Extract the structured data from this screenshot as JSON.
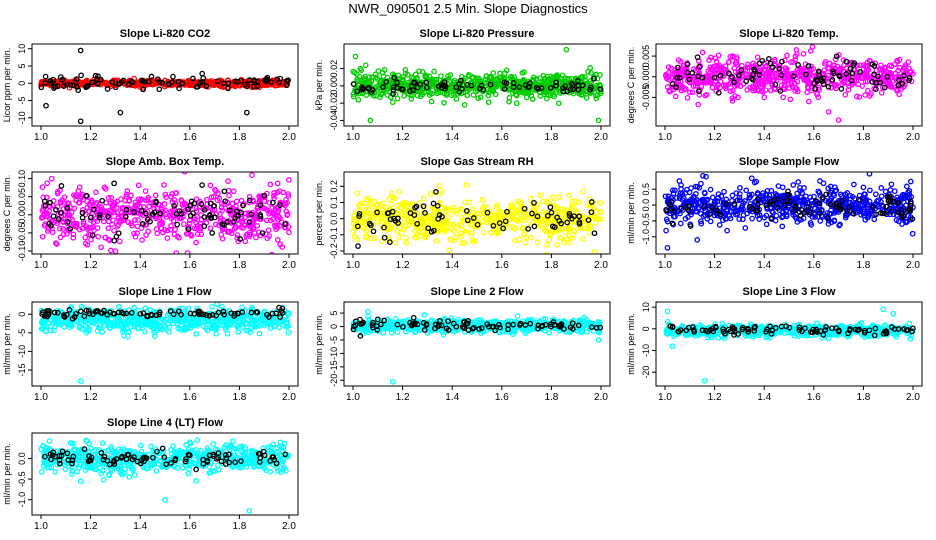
{
  "page": {
    "title": "NWR_090501  2.5 Min. Slope Diagnostics"
  },
  "chart_data": [
    {
      "type": "scatter",
      "title": "Slope Li-820 CO2",
      "xlabel": "",
      "ylabel": "Licor ppm per min.",
      "xlim": [
        1.0,
        2.0
      ],
      "ylim": [
        -11.5,
        10.5
      ],
      "xticks": [
        1.0,
        1.2,
        1.4,
        1.6,
        1.8,
        2.0
      ],
      "xtick_labels": [
        "1.0",
        "1.2",
        "1.4",
        "1.6",
        "1.8",
        "2.0"
      ],
      "yticks": [
        -10,
        -5,
        0,
        5,
        10
      ],
      "ytick_labels": [
        "-10",
        "-5",
        "0",
        "5",
        "10"
      ],
      "color": "#ff0000",
      "series": [
        {
          "name": "all",
          "color": "#ff0000",
          "n": 600,
          "center": 0.0,
          "spread": 0.45,
          "outliers": []
        },
        {
          "name": "selected",
          "color": "#000000",
          "n": 90,
          "center": 0.3,
          "spread": 0.9,
          "outliers": [
            [
              1.02,
              -6.5
            ],
            [
              1.16,
              9.5
            ],
            [
              1.16,
              -11.0
            ],
            [
              1.15,
              -2.0
            ],
            [
              1.32,
              -8.5
            ],
            [
              1.83,
              -8.5
            ],
            [
              1.65,
              2.8
            ],
            [
              1.22,
              2.2
            ],
            [
              1.08,
              1.8
            ]
          ]
        }
      ]
    },
    {
      "type": "scatter",
      "title": "Slope Li-820 Pressure",
      "xlabel": "",
      "ylabel": "kPa per min.",
      "xlim": [
        1.0,
        2.0
      ],
      "ylim": [
        -0.043,
        0.045
      ],
      "xticks": [
        1.0,
        1.2,
        1.4,
        1.6,
        1.8,
        2.0
      ],
      "xtick_labels": [
        "1.0",
        "1.2",
        "1.4",
        "1.6",
        "1.8",
        "2.0"
      ],
      "yticks": [
        -0.04,
        -0.02,
        0.0,
        0.02
      ],
      "ytick_labels": [
        "-0.04",
        "-0.02",
        "0.00",
        "0.02"
      ],
      "color": "#00cc00",
      "series": [
        {
          "name": "all",
          "color": "#00cc00",
          "n": 700,
          "center": 0.0,
          "spread": 0.007,
          "outliers": [
            [
              1.01,
              0.034
            ],
            [
              1.03,
              0.02
            ],
            [
              1.07,
              -0.04
            ],
            [
              1.86,
              0.042
            ],
            [
              1.99,
              -0.04
            ],
            [
              1.45,
              -0.022
            ],
            [
              1.62,
              0.018
            ]
          ]
        },
        {
          "name": "selected",
          "color": "#000000",
          "n": 80,
          "center": 0.0,
          "spread": 0.004,
          "outliers": []
        }
      ]
    },
    {
      "type": "scatter",
      "title": "Slope Li-820 Temp.",
      "xlabel": "",
      "ylabel": "degrees C per min.",
      "xlim": [
        1.0,
        2.0
      ],
      "ylim": [
        -0.0112,
        0.0072
      ],
      "xticks": [
        1.0,
        1.2,
        1.4,
        1.6,
        1.8,
        2.0
      ],
      "xtick_labels": [
        "1.0",
        "1.2",
        "1.4",
        "1.6",
        "1.8",
        "2.0"
      ],
      "yticks": [
        -0.005,
        0.0,
        0.005
      ],
      "ytick_labels": [
        "-0.005",
        "0.000",
        "0.005"
      ],
      "color": "#ff00ff",
      "series": [
        {
          "name": "all",
          "color": "#ff00ff",
          "n": 650,
          "center": 0.0,
          "spread": 0.0022,
          "outliers": [
            [
              1.66,
              -0.0085
            ],
            [
              1.7,
              -0.0105
            ],
            [
              1.58,
              -0.006
            ],
            [
              1.4,
              -0.005
            ]
          ]
        },
        {
          "name": "selected",
          "color": "#000000",
          "n": 85,
          "center": 0.0,
          "spread": 0.0018,
          "outliers": []
        }
      ]
    },
    {
      "type": "scatter",
      "title": "Slope Amb. Box Temp.",
      "xlabel": "",
      "ylabel": "degrees C per min.",
      "xlim": [
        1.0,
        2.0
      ],
      "ylim": [
        -0.1,
        0.11
      ],
      "xticks": [
        1.0,
        1.2,
        1.4,
        1.6,
        1.8,
        2.0
      ],
      "xtick_labels": [
        "1.0",
        "1.2",
        "1.4",
        "1.6",
        "1.8",
        "2.0"
      ],
      "yticks": [
        -0.1,
        -0.05,
        0.0,
        0.05,
        0.1
      ],
      "ytick_labels": [
        "-0.10",
        "-0.05",
        "0.00",
        "0.05",
        "0.10"
      ],
      "color": "#ff00ff",
      "series": [
        {
          "name": "all",
          "color": "#ff00ff",
          "n": 600,
          "center": 0.0,
          "spread": 0.038,
          "outliers": []
        },
        {
          "name": "selected",
          "color": "#000000",
          "n": 90,
          "center": 0.0,
          "spread": 0.03,
          "outliers": []
        }
      ]
    },
    {
      "type": "scatter",
      "title": "Slope Gas Stream RH",
      "xlabel": "",
      "ylabel": "percent per min.",
      "xlim": [
        1.0,
        2.0
      ],
      "ylim": [
        -0.2,
        0.27
      ],
      "xticks": [
        1.0,
        1.2,
        1.4,
        1.6,
        1.8,
        2.0
      ],
      "xtick_labels": [
        "1.0",
        "1.2",
        "1.4",
        "1.6",
        "1.8",
        "2.0"
      ],
      "yticks": [
        -0.2,
        -0.1,
        0.0,
        0.1,
        0.2
      ],
      "ytick_labels": [
        "-0.2",
        "-0.1",
        "0.0",
        "0.1",
        "0.2"
      ],
      "color": "#ffff00",
      "series": [
        {
          "name": "all",
          "color": "#ffff00",
          "n": 600,
          "center": 0.0,
          "spread": 0.07,
          "outliers": []
        },
        {
          "name": "selected",
          "color": "#000000",
          "n": 70,
          "center": 0.0,
          "spread": 0.06,
          "outliers": [
            [
              1.02,
              -0.17
            ]
          ]
        }
      ]
    },
    {
      "type": "scatter",
      "title": "Slope Sample Flow",
      "xlabel": "",
      "ylabel": "ml/min per min.",
      "xlim": [
        1.0,
        2.0
      ],
      "ylim": [
        -1.45,
        0.95
      ],
      "xticks": [
        1.0,
        1.2,
        1.4,
        1.6,
        1.8,
        2.0
      ],
      "xtick_labels": [
        "1.0",
        "1.2",
        "1.4",
        "1.6",
        "1.8",
        "2.0"
      ],
      "yticks": [
        -1.0,
        -0.5,
        0.0,
        0.5
      ],
      "ytick_labels": [
        "-1.0",
        "-0.5",
        "0.0",
        "0.5"
      ],
      "color": "#0000ff",
      "series": [
        {
          "name": "all",
          "color": "#0000ff",
          "n": 650,
          "center": 0.0,
          "spread": 0.3,
          "outliers": [
            [
              1.01,
              -1.35
            ],
            [
              1.35,
              0.85
            ],
            [
              1.13,
              -1.1
            ]
          ]
        },
        {
          "name": "selected",
          "color": "#000000",
          "n": 90,
          "center": 0.0,
          "spread": 0.22,
          "outliers": []
        }
      ]
    },
    {
      "type": "scatter",
      "title": "Slope Line 1 Flow",
      "xlabel": "",
      "ylabel": "ml/min per min.",
      "xlim": [
        1.0,
        2.0
      ],
      "ylim": [
        -18.5,
        2.5
      ],
      "xticks": [
        1.0,
        1.2,
        1.4,
        1.6,
        1.8,
        2.0
      ],
      "xtick_labels": [
        "1.0",
        "1.2",
        "1.4",
        "1.6",
        "1.8",
        "2.0"
      ],
      "yticks": [
        -15,
        -10,
        -5,
        0
      ],
      "ytick_labels": [
        "-15",
        "-10",
        "-5",
        "0"
      ],
      "color": "#00ffff",
      "series": [
        {
          "name": "all",
          "color": "#00ffff",
          "n": 600,
          "center": -1.5,
          "spread": 1.5,
          "outliers": [
            [
              1.16,
              -18.0
            ],
            [
              1.12,
              1.5
            ],
            [
              1.35,
              -6.0
            ]
          ]
        },
        {
          "name": "selected",
          "color": "#000000",
          "n": 90,
          "center": 0.2,
          "spread": 0.5,
          "outliers": []
        }
      ]
    },
    {
      "type": "scatter",
      "title": "Slope Line 2 Flow",
      "xlabel": "",
      "ylabel": "ml/min per min.",
      "xlim": [
        1.0,
        2.0
      ],
      "ylim": [
        -21,
        8
      ],
      "xticks": [
        1.0,
        1.2,
        1.4,
        1.6,
        1.8,
        2.0
      ],
      "xtick_labels": [
        "1.0",
        "1.2",
        "1.4",
        "1.6",
        "1.8",
        "2.0"
      ],
      "yticks": [
        -20,
        -15,
        -10,
        -5,
        0,
        5
      ],
      "ytick_labels": [
        "-20",
        "-15",
        "-10",
        "-5",
        "0",
        "5"
      ],
      "color": "#00ffff",
      "series": [
        {
          "name": "all",
          "color": "#00ffff",
          "n": 600,
          "center": 0.3,
          "spread": 1.2,
          "outliers": [
            [
              1.16,
              -20.5
            ],
            [
              1.99,
              -5.0
            ],
            [
              1.06,
              5.5
            ]
          ]
        },
        {
          "name": "selected",
          "color": "#000000",
          "n": 90,
          "center": 0.5,
          "spread": 1.0,
          "outliers": [
            [
              1.03,
              -3.5
            ]
          ]
        }
      ]
    },
    {
      "type": "scatter",
      "title": "Slope Line 3 Flow",
      "xlabel": "",
      "ylabel": "ml/min per min.",
      "xlim": [
        1.0,
        2.0
      ],
      "ylim": [
        -25,
        11
      ],
      "xticks": [
        1.0,
        1.2,
        1.4,
        1.6,
        1.8,
        2.0
      ],
      "xtick_labels": [
        "1.0",
        "1.2",
        "1.4",
        "1.6",
        "1.8",
        "2.0"
      ],
      "yticks": [
        -20,
        -10,
        0,
        10
      ],
      "ytick_labels": [
        "-20",
        "-10",
        "0",
        "10"
      ],
      "color": "#00ffff",
      "series": [
        {
          "name": "all",
          "color": "#00ffff",
          "n": 600,
          "center": -0.8,
          "spread": 1.3,
          "outliers": [
            [
              1.16,
              -24.0
            ],
            [
              1.01,
              8.0
            ],
            [
              1.03,
              -8.0
            ],
            [
              1.88,
              9.0
            ],
            [
              1.92,
              7.0
            ],
            [
              1.99,
              -4.5
            ]
          ]
        },
        {
          "name": "selected",
          "color": "#000000",
          "n": 90,
          "center": -0.5,
          "spread": 0.9,
          "outliers": []
        }
      ]
    },
    {
      "type": "scatter",
      "title": "Slope Line 4 (LT) Flow",
      "xlabel": "",
      "ylabel": "ml/min per min.",
      "xlim": [
        1.0,
        2.0
      ],
      "ylim": [
        -1.3,
        0.55
      ],
      "xticks": [
        1.0,
        1.2,
        1.4,
        1.6,
        1.8,
        2.0
      ],
      "xtick_labels": [
        "1.0",
        "1.2",
        "1.4",
        "1.6",
        "1.8",
        "2.0"
      ],
      "yticks": [
        -1.0,
        -0.5,
        0.0
      ],
      "ytick_labels": [
        "-1.0",
        "-0.5",
        "0.0"
      ],
      "color": "#00ffff",
      "series": [
        {
          "name": "all",
          "color": "#00ffff",
          "n": 600,
          "center": 0.0,
          "spread": 0.16,
          "outliers": [
            [
              1.5,
              -1.0
            ],
            [
              1.84,
              -1.27
            ],
            [
              1.16,
              -0.55
            ],
            [
              1.63,
              0.45
            ]
          ]
        },
        {
          "name": "selected",
          "color": "#000000",
          "n": 90,
          "center": 0.0,
          "spread": 0.1,
          "outliers": []
        }
      ]
    }
  ]
}
